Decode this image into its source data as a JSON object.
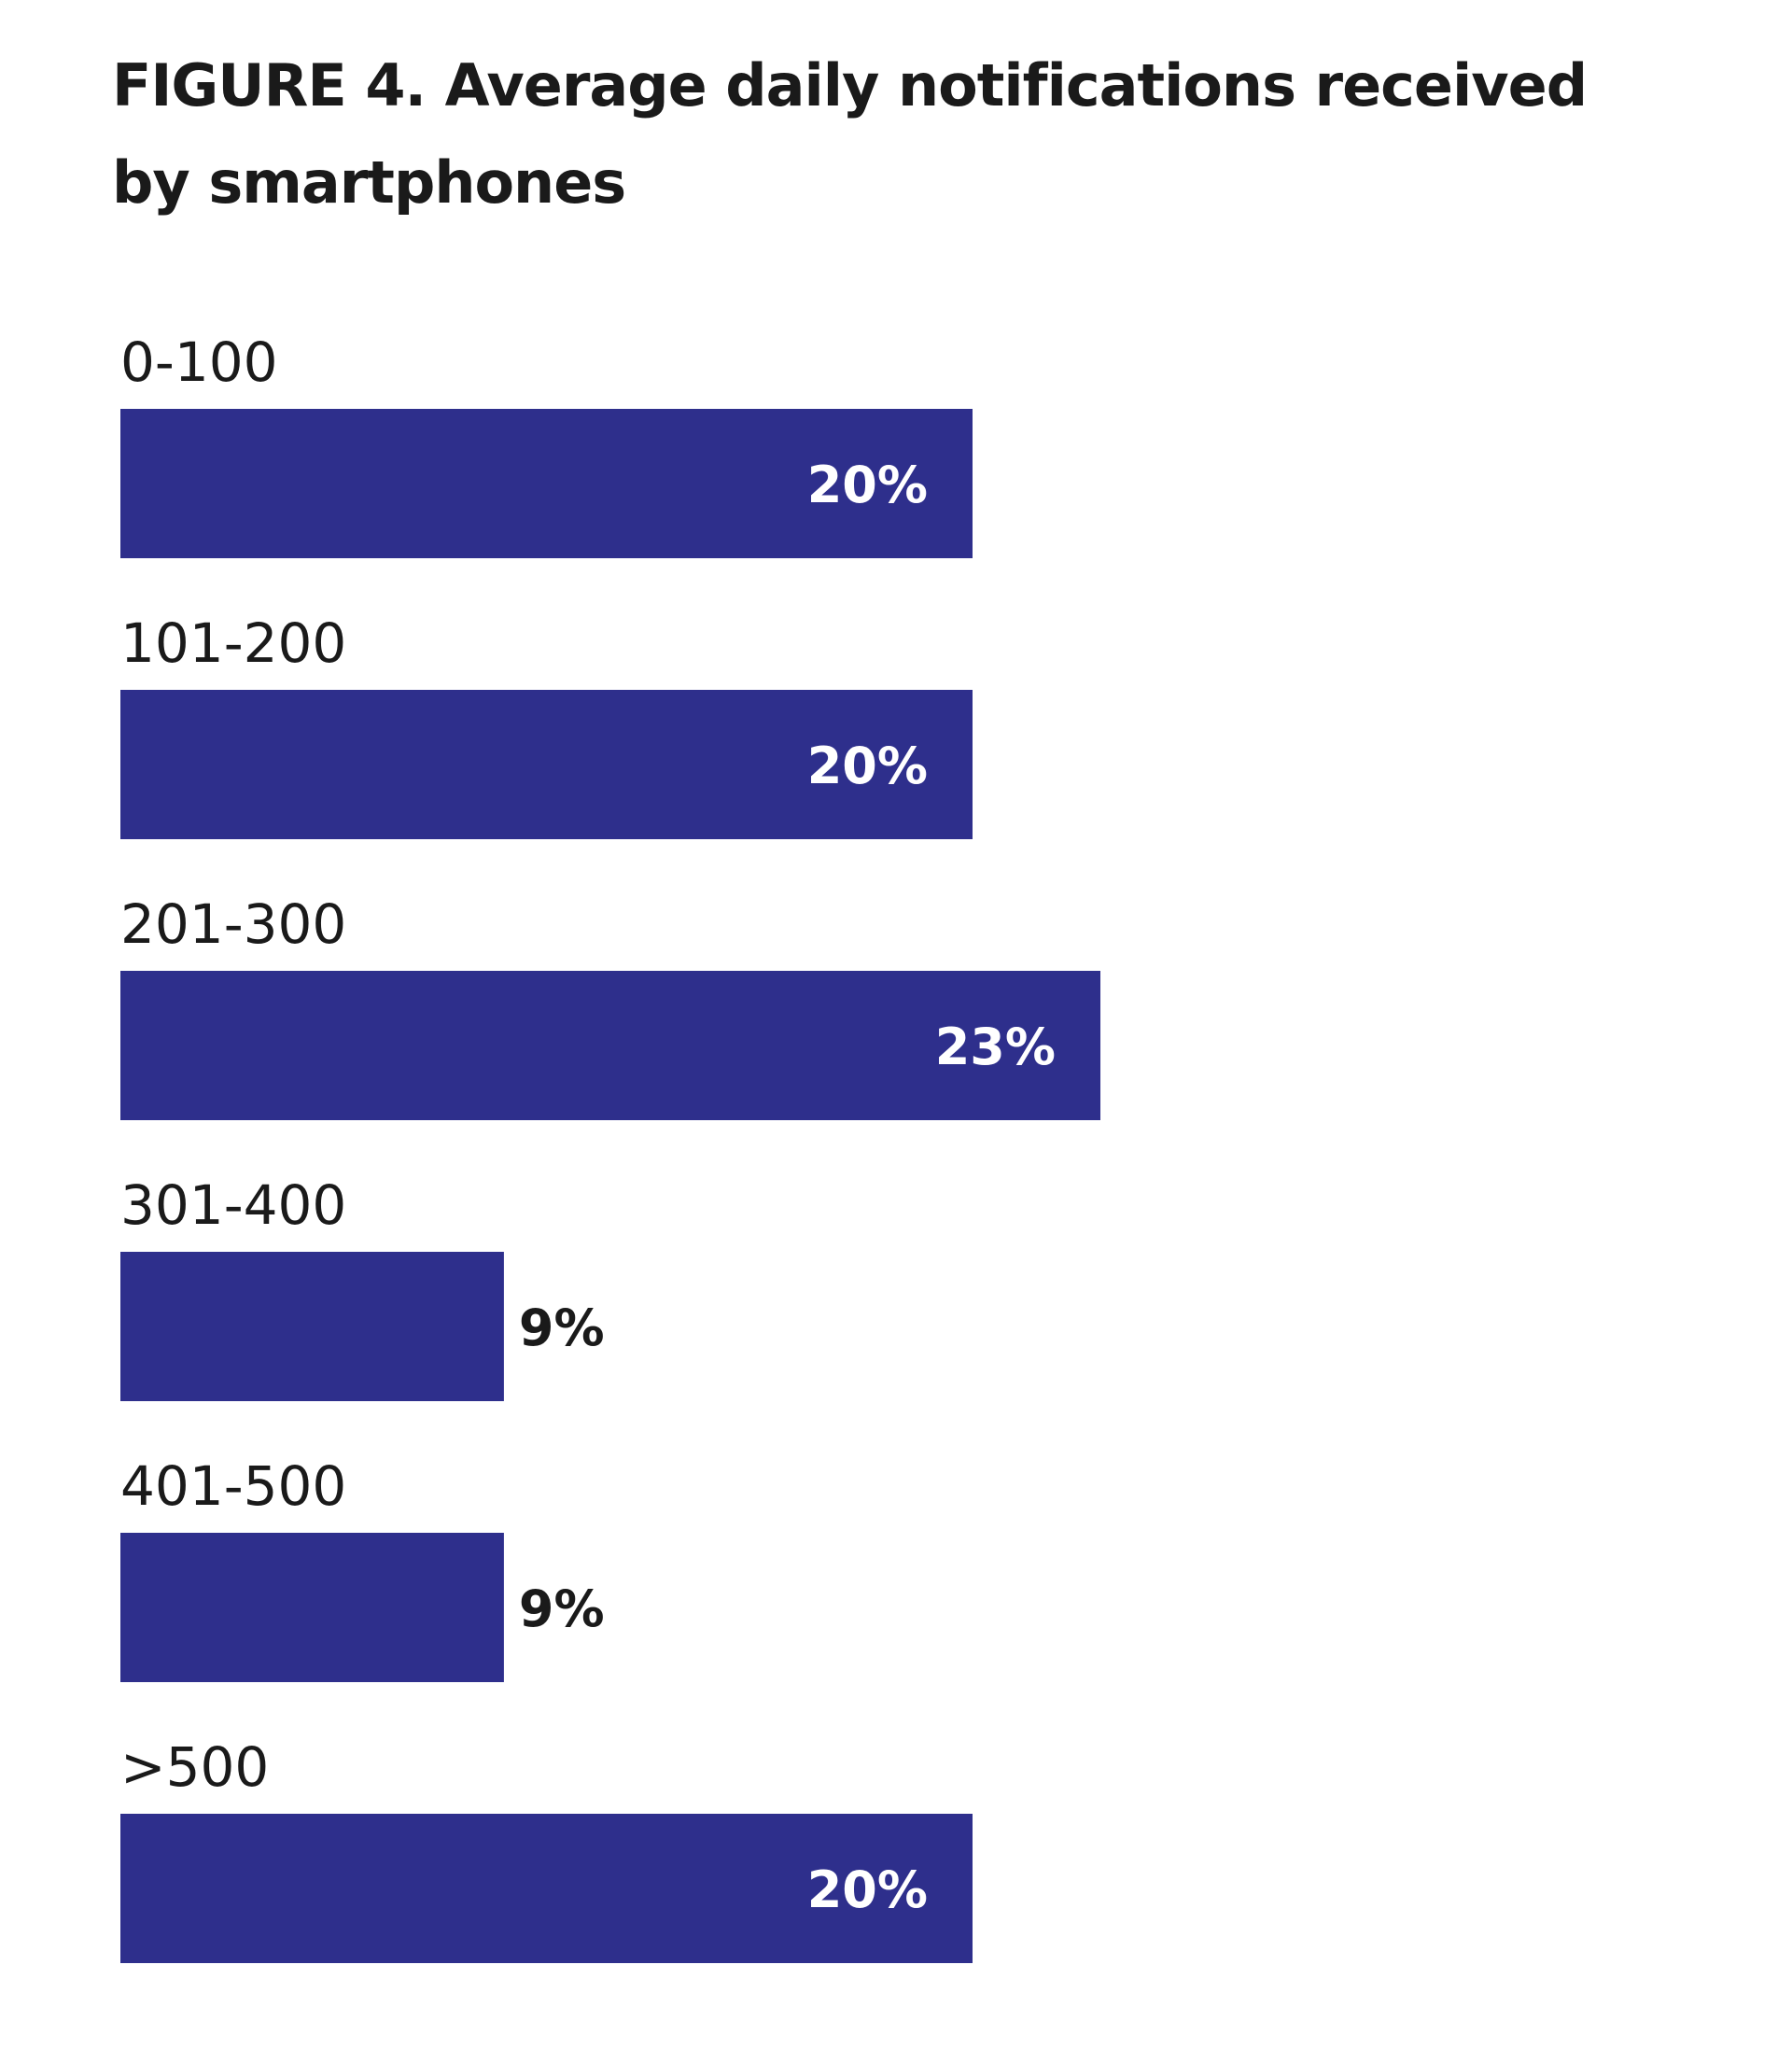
{
  "chart_data": {
    "type": "bar",
    "orientation": "horizontal",
    "title": "FIGURE 4. Average daily notifications received by smartphones",
    "categories": [
      "0-100",
      "101-200",
      "201-300",
      "301-400",
      "401-500",
      ">500"
    ],
    "values": [
      20,
      20,
      23,
      9,
      9,
      20
    ],
    "value_labels": [
      "20%",
      "20%",
      "23%",
      "9%",
      "9%",
      "20%"
    ],
    "unit": "%",
    "xlabel": "",
    "ylabel": "",
    "xlim": [
      0,
      23
    ],
    "grid": false,
    "legend": "none",
    "colors": {
      "bar": "#2e2f8c",
      "label_inside": "#ffffff",
      "label_outside": "#1a1a1a",
      "category_text": "#1a1a1a"
    }
  }
}
